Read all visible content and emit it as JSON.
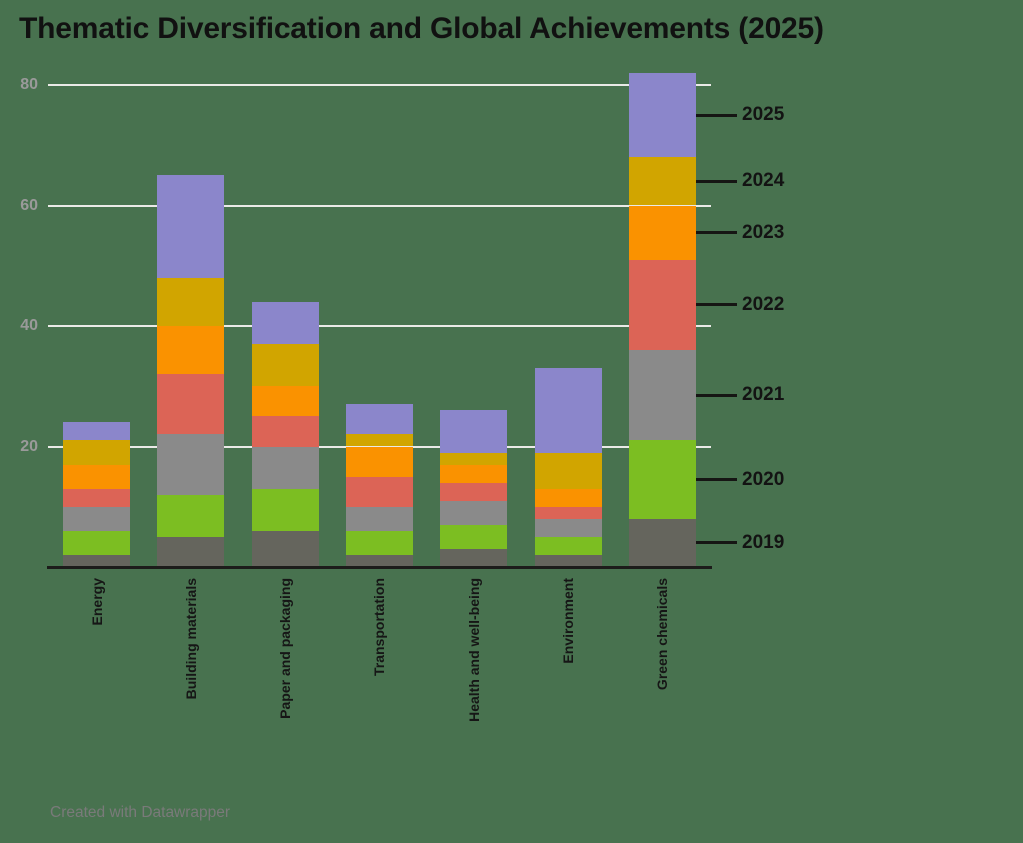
{
  "title": "Thematic Diversification and Global Achievements (2025)",
  "footer": "Created with Datawrapper",
  "colors": {
    "background": "#48724F",
    "gridline": "#EAEAE7",
    "axis_line": "#1C1C1A",
    "y_tick_label": "#9A9A9A",
    "title_text": "#111111",
    "category_label_text": "#161616",
    "year_label_text": "#131313",
    "footer_text": "#7A7A7A"
  },
  "chart_data": {
    "type": "bar",
    "stacked": true,
    "orientation": "vertical",
    "title": "Thematic Diversification and Global Achievements (2025)",
    "categories": [
      "Energy",
      "Building materials",
      "Paper and packaging",
      "Transportation",
      "Health and well-being",
      "Environment",
      "Green chemicals"
    ],
    "series": [
      {
        "name": "2019",
        "color": "#65655D",
        "values": [
          2,
          5,
          6,
          2,
          3,
          2,
          8
        ]
      },
      {
        "name": "2020",
        "color": "#7CBE22",
        "values": [
          4,
          7,
          7,
          4,
          4,
          3,
          13
        ]
      },
      {
        "name": "2021",
        "color": "#8A8A8A",
        "values": [
          4,
          10,
          7,
          4,
          4,
          3,
          15
        ]
      },
      {
        "name": "2022",
        "color": "#DC6456",
        "values": [
          3,
          10,
          5,
          5,
          3,
          2,
          15
        ]
      },
      {
        "name": "2023",
        "color": "#FA9200",
        "values": [
          4,
          8,
          5,
          5,
          3,
          3,
          9
        ]
      },
      {
        "name": "2024",
        "color": "#D1A500",
        "values": [
          4,
          8,
          7,
          2,
          2,
          6,
          8
        ]
      },
      {
        "name": "2025",
        "color": "#8B86CB",
        "values": [
          3,
          17,
          7,
          5,
          7,
          14,
          14
        ]
      }
    ],
    "category_totals": [
      24,
      65,
      44,
      27,
      26,
      33,
      82
    ],
    "y_ticks": [
      20,
      40,
      60,
      80
    ],
    "ylim": [
      0,
      82
    ],
    "grid": true,
    "legend": {
      "position": "right-of-last-bar",
      "entries": [
        "2025",
        "2024",
        "2023",
        "2022",
        "2021",
        "2020",
        "2019"
      ]
    },
    "footer": "Created with Datawrapper"
  }
}
